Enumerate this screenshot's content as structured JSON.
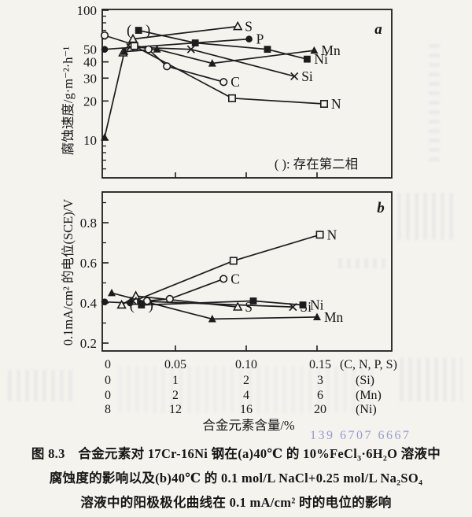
{
  "colors": {
    "ink": "#1c1c1c",
    "paper": "#f5f3ee",
    "watermark": "#7d84c6"
  },
  "figure": {
    "watermark": "139 6707 6667",
    "caption_lines": [
      "图 8.3　合金元素对 17Cr-16Ni 钢在(a)40℃ 的 10%FeCl₃·6H₂O 溶液中",
      "腐蚀度的影响以及(b)40℃ 的 0.1 mol/L NaCl+0.25 mol/L Na₂SO₄",
      "溶液中的阳极极化曲线在 0.1 mA/cm² 时的电位的影响"
    ]
  },
  "x_axis": {
    "title": "合金元素含量/%",
    "rows": [
      {
        "values": [
          "0",
          "0.05",
          "0.10",
          "0.15"
        ],
        "suffix": "(C, N, P, S)"
      },
      {
        "values": [
          "0",
          "1",
          "2",
          "3"
        ],
        "suffix": "(Si)"
      },
      {
        "values": [
          "0",
          "2",
          "4",
          "6"
        ],
        "suffix": "(Mn)"
      },
      {
        "values": [
          "8",
          "12",
          "16",
          "20"
        ],
        "suffix": "(Ni)"
      }
    ]
  },
  "chart_data": [
    {
      "id": "a",
      "type": "line",
      "panel_label": "a",
      "ylabel": "腐蚀速度/g·m⁻²·h⁻¹",
      "yscale": "log",
      "ylim": [
        5,
        101
      ],
      "xlim": [
        0,
        0.2
      ],
      "y_ticks_major": [
        100,
        50,
        40,
        30,
        20,
        10
      ],
      "y_ticks_minor": [
        90,
        80,
        70,
        60,
        9,
        8,
        7,
        6
      ],
      "x_ticks": [
        0.05,
        0.1,
        0.15
      ],
      "annotation": "( ): 存在第二相",
      "series": [
        {
          "name": "S",
          "marker": "triangle-open",
          "points": [
            [
              0.013,
              47
            ],
            [
              0.02,
              60
            ],
            [
              0.094,
              75
            ]
          ]
        },
        {
          "name": "P",
          "marker": "circle-filled",
          "points": [
            [
              0,
              50
            ],
            [
              0.102,
              60
            ]
          ]
        },
        {
          "name": "Mn",
          "marker": "triangle-filled",
          "points": [
            [
              0,
              10.5
            ],
            [
              0.014,
              48
            ],
            [
              0.037,
              50
            ],
            [
              0.076,
              39
            ],
            [
              0.148,
              49
            ]
          ]
        },
        {
          "name": "Ni",
          "marker": "square-filled",
          "paren_point": 0,
          "points": [
            [
              0.024,
              70
            ],
            [
              0.064,
              56
            ],
            [
              0.115,
              50
            ],
            [
              0.143,
              42
            ]
          ]
        },
        {
          "name": "Si",
          "marker": "x-cross",
          "points": [
            [
              0.018,
              52
            ],
            [
              0.061,
              50
            ],
            [
              0.134,
              31
            ]
          ]
        },
        {
          "name": "C",
          "marker": "circle-open",
          "points": [
            [
              0,
              64
            ],
            [
              0.031,
              50
            ],
            [
              0.044,
              37
            ],
            [
              0.084,
              28
            ]
          ]
        },
        {
          "name": "N",
          "marker": "square-open",
          "points": [
            [
              0.021,
              53
            ],
            [
              0.09,
              21
            ],
            [
              0.155,
              19
            ]
          ]
        }
      ]
    },
    {
      "id": "b",
      "type": "line",
      "panel_label": "b",
      "ylabel": "0.1mA/cm² 的电位(SCE)/V",
      "yscale": "linear",
      "ylim": [
        0.16,
        0.95
      ],
      "xlim": [
        0,
        0.2
      ],
      "y_ticks_major": [
        0.8,
        0.6,
        0.4,
        0.2
      ],
      "y_ticks_minor": [
        0.9,
        0.7,
        0.5,
        0.3
      ],
      "x_ticks": [
        0.05,
        0.1,
        0.15
      ],
      "annotation": "",
      "series": [
        {
          "name": "N",
          "marker": "square-open",
          "points": [
            [
              0.021,
              0.41
            ],
            [
              0.091,
              0.61
            ],
            [
              0.152,
              0.74
            ]
          ]
        },
        {
          "name": "C",
          "marker": "circle-open",
          "points": [
            [
              0.03,
              0.41
            ],
            [
              0.046,
              0.42
            ],
            [
              0.084,
              0.52
            ]
          ]
        },
        {
          "name": "S",
          "marker": "triangle-open",
          "points": [
            [
              0.012,
              0.39
            ],
            [
              0.022,
              0.435
            ],
            [
              0.094,
              0.38
            ]
          ]
        },
        {
          "name": "Si",
          "marker": "x-cross",
          "points": [
            [
              0.02,
              0.41
            ],
            [
              0.133,
              0.38
            ]
          ]
        },
        {
          "name": "Ni",
          "marker": "square-filled",
          "paren_point": 0,
          "points": [
            [
              0.026,
              0.39
            ],
            [
              0.105,
              0.41
            ],
            [
              0.14,
              0.39
            ]
          ]
        },
        {
          "name": "Mn",
          "marker": "triangle-filled",
          "points": [
            [
              0.005,
              0.45
            ],
            [
              0.076,
              0.32
            ],
            [
              0.15,
              0.33
            ]
          ]
        },
        {
          "name": "",
          "marker": "circle-filled",
          "points": [
            [
              0,
              0.405
            ],
            [
              0.018,
              0.4
            ]
          ]
        }
      ]
    }
  ]
}
